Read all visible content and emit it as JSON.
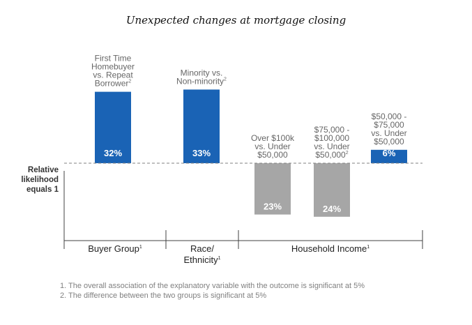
{
  "title": "Unexpected changes at mortgage closing",
  "chart_data": {
    "type": "bar",
    "baseline_label": [
      "Relative",
      "likelihood",
      "equals 1"
    ],
    "ylim": [
      -30,
      45
    ],
    "groups": [
      {
        "name": "Buyer Group",
        "sup": "1",
        "name_lines": [
          "Buyer Group"
        ]
      },
      {
        "name": "Race/ Ethnicity",
        "sup": "1",
        "name_lines": [
          "Race/",
          "Ethnicity"
        ]
      },
      {
        "name": "Household Income",
        "sup": "1",
        "name_lines": [
          "Household Income"
        ]
      }
    ],
    "bars": [
      {
        "group": "Buyer Group",
        "category": "First Time Homebuyer vs. Repeat Borrower",
        "label_lines": [
          "First Time",
          "Homebuyer",
          "vs. Repeat",
          "Borrower"
        ],
        "sup": "2",
        "value": 32,
        "value_label": "32%",
        "color": "#1a63b5"
      },
      {
        "group": "Race/ Ethnicity",
        "category": "Minority vs. Non-minority",
        "label_lines": [
          "Minority vs.",
          "Non-minority"
        ],
        "sup": "2",
        "value": 33,
        "value_label": "33%",
        "color": "#1a63b5"
      },
      {
        "group": "Household Income",
        "category": "Over $100k vs. Under $50,000",
        "label_lines": [
          "Over $100k",
          "vs. Under",
          "$50,000"
        ],
        "sup": "",
        "value": -23,
        "value_label": "23%",
        "color": "#a6a6a6"
      },
      {
        "group": "Household Income",
        "category": "$75,000 - $100,000 vs. Under $50,000",
        "label_lines": [
          "$75,000 -",
          "$100,000",
          "vs. Under",
          "$50,000"
        ],
        "sup": "2",
        "value": -24,
        "value_label": "24%",
        "color": "#a6a6a6"
      },
      {
        "group": "Household Income",
        "category": "$50,000 - $75,000 vs. Under $50,000",
        "label_lines": [
          "$50,000 -",
          "$75,000",
          "vs. Under",
          "$50,000"
        ],
        "sup": "",
        "value": 6,
        "value_label": "6%",
        "color": "#1a63b5"
      }
    ],
    "colors": {
      "positive": "#1a63b5",
      "negative": "#a6a6a6",
      "baseline": "#808080",
      "axis": "#404040"
    }
  },
  "footnotes": [
    "1.  The overall association of the explanatory variable with the outcome is significant at 5%",
    "2.  The difference between the two groups is significant at 5%"
  ]
}
